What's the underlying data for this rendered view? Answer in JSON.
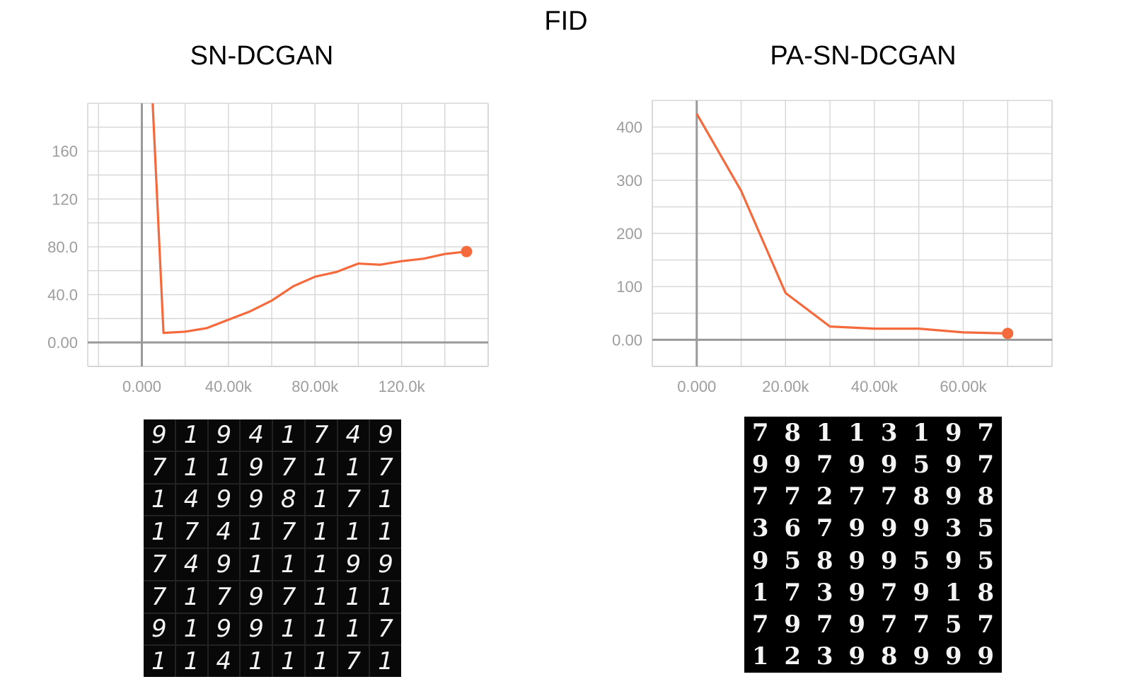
{
  "title": "FID",
  "chart_data": [
    {
      "type": "line",
      "title": "SN-DCGAN",
      "xlabel": "",
      "ylabel": "",
      "xlim": [
        -25000,
        160000
      ],
      "ylim": [
        -20,
        200
      ],
      "x_ticks": [
        0,
        40000,
        80000,
        120000
      ],
      "x_tick_labels": [
        "0.000",
        "40.00k",
        "80.00k",
        "120.0k"
      ],
      "y_ticks": [
        0,
        40,
        80,
        120,
        160
      ],
      "y_tick_labels": [
        "0.00",
        "40.0",
        "80.0",
        "120",
        "160"
      ],
      "grid": true,
      "series": [
        {
          "x": [
            5000,
            10000,
            20000,
            30000,
            40000,
            50000,
            60000,
            70000,
            80000,
            90000,
            100000,
            110000,
            120000,
            130000,
            140000,
            150000
          ],
          "y": [
            200,
            8,
            9,
            12,
            19,
            26,
            35,
            47,
            55,
            59,
            66,
            65,
            68,
            70,
            74,
            76
          ],
          "color": "#f46a3d"
        }
      ]
    },
    {
      "type": "line",
      "title": "PA-SN-DCGAN",
      "xlabel": "",
      "ylabel": "",
      "xlim": [
        -10000,
        80000
      ],
      "ylim": [
        -50,
        450
      ],
      "x_ticks": [
        0,
        20000,
        40000,
        60000
      ],
      "x_tick_labels": [
        "0.000",
        "20.00k",
        "40.00k",
        "60.00k"
      ],
      "y_ticks": [
        0,
        100,
        200,
        300,
        400
      ],
      "y_tick_labels": [
        "0.00",
        "100",
        "200",
        "300",
        "400"
      ],
      "grid": true,
      "series": [
        {
          "x": [
            0,
            10000,
            20000,
            30000,
            40000,
            50000,
            60000,
            70000
          ],
          "y": [
            425,
            280,
            88,
            25,
            21,
            21,
            14,
            12
          ],
          "color": "#f46a3d"
        }
      ]
    }
  ],
  "samples": {
    "left_digits": [
      "9",
      "1",
      "9",
      "4",
      "1",
      "7",
      "4",
      "9",
      "7",
      "1",
      "1",
      "9",
      "7",
      "1",
      "1",
      "7",
      "1",
      "4",
      "9",
      "9",
      "8",
      "1",
      "7",
      "1",
      "1",
      "7",
      "4",
      "1",
      "7",
      "1",
      "1",
      "1",
      "7",
      "4",
      "9",
      "1",
      "1",
      "1",
      "9",
      "9",
      "7",
      "1",
      "7",
      "9",
      "7",
      "1",
      "1",
      "1",
      "9",
      "1",
      "9",
      "9",
      "1",
      "1",
      "1",
      "7",
      "1",
      "1",
      "4",
      "1",
      "1",
      "1",
      "7",
      "1"
    ],
    "right_digits": [
      "7",
      "8",
      "1",
      "1",
      "3",
      "1",
      "9",
      "7",
      "9",
      "9",
      "7",
      "9",
      "9",
      "5",
      "9",
      "7",
      "7",
      "7",
      "2",
      "7",
      "7",
      "8",
      "9",
      "8",
      "3",
      "6",
      "7",
      "9",
      "9",
      "9",
      "3",
      "5",
      "9",
      "5",
      "8",
      "9",
      "9",
      "5",
      "9",
      "5",
      "1",
      "7",
      "3",
      "9",
      "7",
      "9",
      "1",
      "8",
      "7",
      "9",
      "7",
      "9",
      "7",
      "7",
      "5",
      "7",
      "1",
      "2",
      "3",
      "9",
      "8",
      "9",
      "9",
      "9"
    ]
  }
}
